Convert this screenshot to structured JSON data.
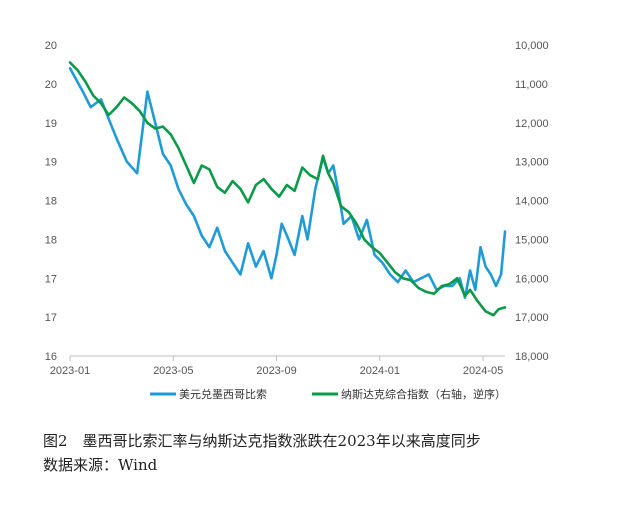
{
  "chart_data": {
    "type": "line",
    "x_tick_labels": [
      "2023-01",
      "2023-05",
      "2023-09",
      "2024-01",
      "2024-05"
    ],
    "x_tick_positions": [
      0,
      4,
      8,
      12,
      16
    ],
    "left_axis": {
      "tick_labels": [
        "20",
        "20",
        "19",
        "19",
        "18",
        "18",
        "17",
        "17",
        "16"
      ],
      "ylim": [
        16,
        20
      ]
    },
    "right_axis": {
      "tick_labels": [
        "10,000",
        "11,000",
        "12,000",
        "13,000",
        "14,000",
        "15,000",
        "16,000",
        "17,000",
        "18,000"
      ],
      "ylim": [
        10000,
        18000
      ],
      "reversed": true
    },
    "series": [
      {
        "name": "美元兑墨西哥比索",
        "axis": "left",
        "color": "#1f9bd7",
        "x": [
          0,
          0.5,
          0.8,
          1.2,
          1.5,
          1.8,
          2.2,
          2.6,
          3.0,
          3.3,
          3.6,
          3.9,
          4.2,
          4.5,
          4.8,
          5.1,
          5.4,
          5.7,
          6.0,
          6.3,
          6.6,
          6.9,
          7.2,
          7.5,
          7.8,
          8.0,
          8.2,
          8.4,
          8.7,
          9.0,
          9.2,
          9.5,
          9.8,
          10.0,
          10.2,
          10.4,
          10.6,
          10.9,
          11.2,
          11.5,
          11.8,
          12.1,
          12.4,
          12.7,
          13.0,
          13.3,
          13.6,
          13.9,
          14.2,
          14.5,
          14.8,
          15.1,
          15.3,
          15.5,
          15.7,
          15.9,
          16.1,
          16.3,
          16.5,
          16.7,
          16.85
        ],
        "y": [
          19.7,
          19.4,
          19.2,
          19.3,
          19.05,
          18.8,
          18.5,
          18.35,
          19.4,
          19.0,
          18.6,
          18.45,
          18.15,
          17.95,
          17.8,
          17.55,
          17.4,
          17.65,
          17.35,
          17.2,
          17.05,
          17.45,
          17.15,
          17.35,
          17.0,
          17.3,
          17.7,
          17.55,
          17.3,
          17.8,
          17.5,
          18.15,
          18.55,
          18.35,
          18.45,
          18.1,
          17.7,
          17.8,
          17.5,
          17.75,
          17.3,
          17.2,
          17.05,
          16.95,
          17.1,
          16.95,
          17.0,
          17.05,
          16.85,
          16.9,
          16.9,
          17.0,
          16.75,
          17.1,
          16.85,
          17.4,
          17.15,
          17.05,
          16.9,
          17.05,
          17.6
        ]
      },
      {
        "name": "纳斯达克综合指数（右轴，逆序）",
        "axis": "right",
        "color": "#0a9a48",
        "x": [
          0,
          0.3,
          0.6,
          0.9,
          1.2,
          1.5,
          1.8,
          2.1,
          2.4,
          2.7,
          3.0,
          3.3,
          3.6,
          3.9,
          4.2,
          4.5,
          4.8,
          5.1,
          5.4,
          5.7,
          6.0,
          6.3,
          6.6,
          6.9,
          7.2,
          7.5,
          7.8,
          8.1,
          8.4,
          8.7,
          9.0,
          9.3,
          9.6,
          9.8,
          10.0,
          10.2,
          10.5,
          10.8,
          11.1,
          11.4,
          11.7,
          12.0,
          12.3,
          12.6,
          12.9,
          13.2,
          13.5,
          13.8,
          14.1,
          14.4,
          14.7,
          15.0,
          15.3,
          15.5,
          15.8,
          16.1,
          16.4,
          16.6,
          16.85
        ],
        "y": [
          10450,
          10650,
          10950,
          11300,
          11500,
          11800,
          11600,
          11350,
          11500,
          11700,
          12000,
          12150,
          12100,
          12300,
          12650,
          13100,
          13550,
          13100,
          13200,
          13650,
          13800,
          13500,
          13700,
          14050,
          13600,
          13450,
          13700,
          13900,
          13600,
          13750,
          13150,
          13350,
          13450,
          12850,
          13300,
          13550,
          14150,
          14300,
          14600,
          15000,
          15200,
          15350,
          15600,
          15850,
          16000,
          16050,
          16250,
          16350,
          16400,
          16200,
          16150,
          16000,
          16450,
          16300,
          16600,
          16850,
          16950,
          16800,
          16750
        ]
      }
    ]
  },
  "legend": [
    {
      "label": "美元兑墨西哥比索",
      "color": "#1f9bd7"
    },
    {
      "label": "纳斯达克综合指数（右轴，逆序）",
      "color": "#0a9a48"
    }
  ],
  "caption": "图2　墨西哥比索汇率与纳斯达克指数涨跌在2023年以来高度同步",
  "source": "数据来源：Wind"
}
